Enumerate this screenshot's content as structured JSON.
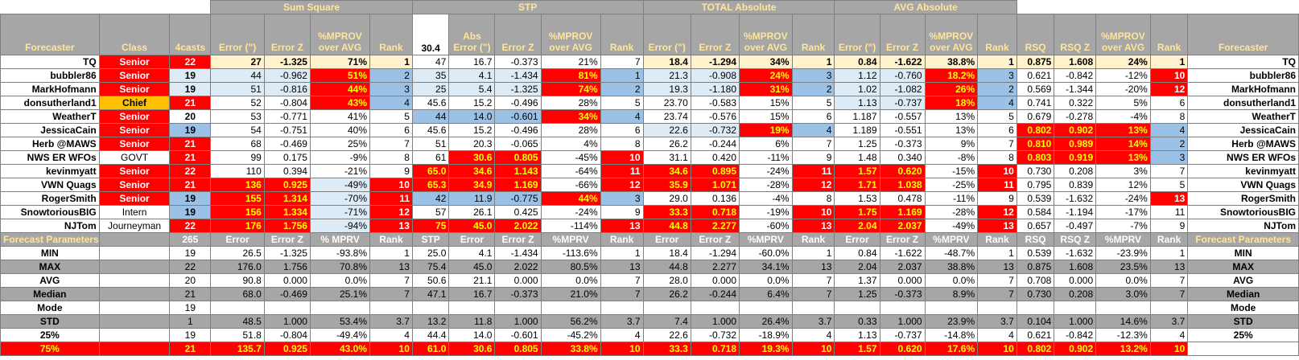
{
  "groups": {
    "sum_square": "Sum Square",
    "stp": "STP",
    "total_abs": "TOTAL Absolute",
    "avg_abs": "AVG Absolute"
  },
  "headers": {
    "forecaster": "Forecaster",
    "class": "Class",
    "casts": "4casts",
    "ss_error": "Error (\")",
    "ss_errz": "Error Z",
    "ss_mprov": "%MPROV over AVG",
    "ss_rank": "Rank",
    "stp_val": "30.4",
    "stp_abs": "Abs Error (\")",
    "stp_errz": "Error Z",
    "stp_mprov": "%MPROV over AVG",
    "stp_rank": "Rank",
    "ta_error": "Error (\")",
    "ta_errz": "Error Z",
    "ta_mprov": "%MPROV over AVG",
    "ta_rank": "Rank",
    "aa_error": "Error (\")",
    "aa_errz": "Error Z",
    "aa_mprov": "%MPROV over AVG",
    "aa_rank": "Rank",
    "rsq": "RSQ",
    "rsqz": "RSQ Z",
    "rsq_mprov": "%MPROV over AVG",
    "rsq_rank": "Rank",
    "forecaster2": "Forecaster"
  },
  "rows": [
    {
      "name": "TQ",
      "cls": "Senior",
      "n": "22",
      "v": [
        "27",
        "-1.325",
        "71%",
        "1",
        "47",
        "16.7",
        "-0.373",
        "21%",
        "7",
        "18.4",
        "-1.294",
        "34%",
        "1",
        "0.84",
        "-1.622",
        "38.8%",
        "1",
        "0.875",
        "1.608",
        "24%",
        "1"
      ],
      "name2": "TQ"
    },
    {
      "name": "bubbler86",
      "cls": "Senior",
      "n": "19",
      "v": [
        "44",
        "-0.962",
        "51%",
        "2",
        "35",
        "4.1",
        "-1.434",
        "81%",
        "1",
        "21.3",
        "-0.908",
        "24%",
        "3",
        "1.12",
        "-0.760",
        "18.2%",
        "3",
        "0.621",
        "-0.842",
        "-12%",
        "10"
      ],
      "name2": "bubbler86"
    },
    {
      "name": "MarkHofmann",
      "cls": "Senior",
      "n": "19",
      "v": [
        "51",
        "-0.816",
        "44%",
        "3",
        "25",
        "5.4",
        "-1.325",
        "74%",
        "2",
        "19.3",
        "-1.180",
        "31%",
        "2",
        "1.02",
        "-1.082",
        "26%",
        "2",
        "0.569",
        "-1.344",
        "-20%",
        "12"
      ],
      "name2": "MarkHofmann"
    },
    {
      "name": "donsutherland1",
      "cls": "Chief",
      "n": "21",
      "v": [
        "52",
        "-0.804",
        "43%",
        "4",
        "45.6",
        "15.2",
        "-0.496",
        "28%",
        "5",
        "23.70",
        "-0.583",
        "15%",
        "5",
        "1.13",
        "-0.737",
        "18%",
        "4",
        "0.741",
        "0.322",
        "5%",
        "6"
      ],
      "name2": "donsutherland1"
    },
    {
      "name": "WeatherT",
      "cls": "Senior",
      "n": "20",
      "v": [
        "53",
        "-0.771",
        "41%",
        "5",
        "44",
        "14.0",
        "-0.601",
        "34%",
        "4",
        "23.74",
        "-0.576",
        "15%",
        "6",
        "1.187",
        "-0.557",
        "13%",
        "5",
        "0.679",
        "-0.278",
        "-4%",
        "8"
      ],
      "name2": "WeatherT"
    },
    {
      "name": "JessicaCain",
      "cls": "Senior",
      "n": "19",
      "v": [
        "54",
        "-0.751",
        "40%",
        "6",
        "45.6",
        "15.2",
        "-0.496",
        "28%",
        "6",
        "22.6",
        "-0.732",
        "19%",
        "4",
        "1.189",
        "-0.551",
        "13%",
        "6",
        "0.802",
        "0.902",
        "13%",
        "4"
      ],
      "name2": "JessicaCain"
    },
    {
      "name": "Herb @MAWS",
      "cls": "Senior",
      "n": "21",
      "v": [
        "68",
        "-0.469",
        "25%",
        "7",
        "51",
        "20.3",
        "-0.065",
        "4%",
        "8",
        "26.2",
        "-0.244",
        "6%",
        "7",
        "1.25",
        "-0.373",
        "9%",
        "7",
        "0.810",
        "0.989",
        "14%",
        "2"
      ],
      "name2": "Herb @MAWS"
    },
    {
      "name": "NWS ER WFOs",
      "cls": "GOVT",
      "n": "21",
      "v": [
        "99",
        "0.175",
        "-9%",
        "8",
        "61",
        "30.6",
        "0.805",
        "-45%",
        "10",
        "31.1",
        "0.420",
        "-11%",
        "9",
        "1.48",
        "0.340",
        "-8%",
        "8",
        "0.803",
        "0.919",
        "13%",
        "3"
      ],
      "name2": "NWS ER WFOs"
    },
    {
      "name": "kevinmyatt",
      "cls": "Senior",
      "n": "22",
      "v": [
        "110",
        "0.394",
        "-21%",
        "9",
        "65.0",
        "34.6",
        "1.143",
        "-64%",
        "11",
        "34.6",
        "0.895",
        "-24%",
        "11",
        "1.57",
        "0.620",
        "-15%",
        "10",
        "0.730",
        "0.208",
        "3%",
        "7"
      ],
      "name2": "kevinmyatt"
    },
    {
      "name": "VWN Quags",
      "cls": "Senior",
      "n": "21",
      "v": [
        "136",
        "0.925",
        "-49%",
        "10",
        "65.3",
        "34.9",
        "1.169",
        "-66%",
        "12",
        "35.9",
        "1.071",
        "-28%",
        "12",
        "1.71",
        "1.038",
        "-25%",
        "11",
        "0.795",
        "0.839",
        "12%",
        "5"
      ],
      "name2": "VWN Quags"
    },
    {
      "name": "RogerSmith",
      "cls": "Senior",
      "n": "19",
      "v": [
        "155",
        "1.314",
        "-70%",
        "11",
        "42",
        "11.9",
        "-0.775",
        "44%",
        "3",
        "29.0",
        "0.136",
        "-4%",
        "8",
        "1.53",
        "0.478",
        "-11%",
        "9",
        "0.539",
        "-1.632",
        "-24%",
        "13"
      ],
      "name2": "RogerSmith"
    },
    {
      "name": "SnowtoriousBIG",
      "cls": "Intern",
      "n": "19",
      "v": [
        "156",
        "1.334",
        "-71%",
        "12",
        "57",
        "26.1",
        "0.425",
        "-24%",
        "9",
        "33.3",
        "0.718",
        "-19%",
        "10",
        "1.75",
        "1.169",
        "-28%",
        "12",
        "0.584",
        "-1.194",
        "-17%",
        "11"
      ],
      "name2": "SnowtoriousBIG"
    },
    {
      "name": "NJTom",
      "cls": "Journeyman",
      "n": "22",
      "v": [
        "176",
        "1.756",
        "-94%",
        "13",
        "75",
        "45.0",
        "2.022",
        "-114%",
        "13",
        "44.8",
        "2.277",
        "-60%",
        "13",
        "2.04",
        "2.037",
        "-49%",
        "13",
        "0.657",
        "-0.497",
        "-7%",
        "9"
      ],
      "name2": "NJTom"
    }
  ],
  "params_header": {
    "label": "Forecast Parameters",
    "total": "265",
    "v": [
      "Error",
      "Error Z",
      "% MPRV",
      "Rank",
      "STP",
      "Error",
      "Error Z",
      "%MPRV",
      "Rank",
      "Error",
      "Error Z",
      "%MPRV",
      "Rank",
      "Error",
      "Error Z",
      "%MPRV",
      "Rank",
      "RSQ",
      "RSQ Z",
      "%MPRV",
      "Rank"
    ],
    "label2": "Forecast Parameters"
  },
  "stats": [
    {
      "name": "MIN",
      "n": "19",
      "v": [
        "26.5",
        "-1.325",
        "-93.8%",
        "1",
        "25.0",
        "4.1",
        "-1.434",
        "-113.6%",
        "1",
        "18.4",
        "-1.294",
        "-60.0%",
        "1",
        "0.84",
        "-1.622",
        "-48.7%",
        "1",
        "0.539",
        "-1.632",
        "-23.9%",
        "1"
      ],
      "name2": "MIN"
    },
    {
      "name": "MAX",
      "n": "22",
      "v": [
        "176.0",
        "1.756",
        "70.8%",
        "13",
        "75.4",
        "45.0",
        "2.022",
        "80.5%",
        "13",
        "44.8",
        "2.277",
        "34.1%",
        "13",
        "2.04",
        "2.037",
        "38.8%",
        "13",
        "0.875",
        "1.608",
        "23.5%",
        "13"
      ],
      "name2": "MAX"
    },
    {
      "name": "AVG",
      "n": "20",
      "v": [
        "90.8",
        "0.000",
        "0.0%",
        "7",
        "50.6",
        "21.1",
        "0.000",
        "0.0%",
        "7",
        "28.0",
        "0.000",
        "0.0%",
        "7",
        "1.37",
        "0.000",
        "0.0%",
        "7",
        "0.708",
        "0.000",
        "0.0%",
        "7"
      ],
      "name2": "AVG"
    },
    {
      "name": "Median",
      "n": "21",
      "v": [
        "68.0",
        "-0.469",
        "25.1%",
        "7",
        "47.1",
        "16.7",
        "-0.373",
        "21.0%",
        "7",
        "26.2",
        "-0.244",
        "6.4%",
        "7",
        "1.25",
        "-0.373",
        "8.9%",
        "7",
        "0.730",
        "0.208",
        "3.0%",
        "7"
      ],
      "name2": "Median"
    },
    {
      "name": "Mode",
      "n": "19",
      "v": [
        "",
        "",
        "",
        "",
        "",
        "",
        "",
        "",
        "",
        "",
        "",
        "",
        "",
        "",
        "",
        "",
        "",
        "",
        "",
        "",
        ""
      ],
      "name2": "Mode"
    },
    {
      "name": "STD",
      "n": "1",
      "v": [
        "48.5",
        "1.000",
        "53.4%",
        "3.7",
        "13.2",
        "11.8",
        "1.000",
        "56.2%",
        "3.7",
        "7.4",
        "1.000",
        "26.4%",
        "3.7",
        "0.33",
        "1.000",
        "23.9%",
        "3.7",
        "0.104",
        "1.000",
        "14.6%",
        "3.7"
      ],
      "name2": "STD"
    },
    {
      "name": "25%",
      "n": "19",
      "v": [
        "51.8",
        "-0.804",
        "-49.4%",
        "4",
        "44.4",
        "14.0",
        "-0.601",
        "-45.2%",
        "4",
        "22.6",
        "-0.732",
        "-18.9%",
        "4",
        "1.13",
        "-0.737",
        "-14.8%",
        "4",
        "0.621",
        "-0.842",
        "-12.3%",
        "4"
      ],
      "name2": "25%"
    },
    {
      "name": "75%",
      "n": "21",
      "v": [
        "135.7",
        "0.925",
        "43.0%",
        "10",
        "61.0",
        "30.6",
        "0.805",
        "33.8%",
        "10",
        "33.3",
        "0.718",
        "19.3%",
        "10",
        "1.57",
        "0.620",
        "17.6%",
        "10",
        "0.802",
        "0.902",
        "13.2%",
        "10"
      ],
      "name2": ""
    }
  ],
  "colors": {
    "red": "#ff0000",
    "yellow_text": "#ffff00",
    "gray_header": "#a6a6a6",
    "header_text": "#ffe699",
    "cream": "#fff2cc",
    "light_blue": "#ddebf7",
    "mid_blue": "#bdd7ee",
    "blue": "#9bc2e6",
    "gold": "#ffc000"
  }
}
